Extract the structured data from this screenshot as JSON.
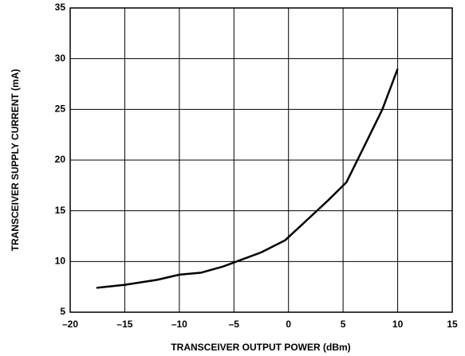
{
  "chart_data": {
    "type": "line",
    "xlabel": "TRANSCEIVER OUTPUT POWER (dBm)",
    "ylabel": "TRANSCEIVER SUPPLY CURRENT (mA)",
    "x": [
      -17.6,
      -15,
      -12,
      -10,
      -8,
      -6,
      -4.5,
      -2.5,
      -0.3,
      1.8,
      3.6,
      5.3,
      7,
      8.6,
      10
    ],
    "series": [
      {
        "color": "#000000",
        "values": [
          7.4,
          7.7,
          8.2,
          8.7,
          8.9,
          9.5,
          10.1,
          10.9,
          12.1,
          14.2,
          16.0,
          17.8,
          21.5,
          25,
          29
        ]
      }
    ],
    "xlim": [
      -20,
      15
    ],
    "xticks": [
      {
        "value": -20,
        "label": "–20"
      },
      {
        "value": -15,
        "label": "–15"
      },
      {
        "value": -10,
        "label": "–10"
      },
      {
        "value": -5,
        "label": "–5"
      },
      0,
      5,
      10,
      15
    ],
    "ylim": [
      5,
      35
    ],
    "yticks": [
      5,
      10,
      15,
      20,
      25,
      30,
      35
    ],
    "grid": true
  }
}
